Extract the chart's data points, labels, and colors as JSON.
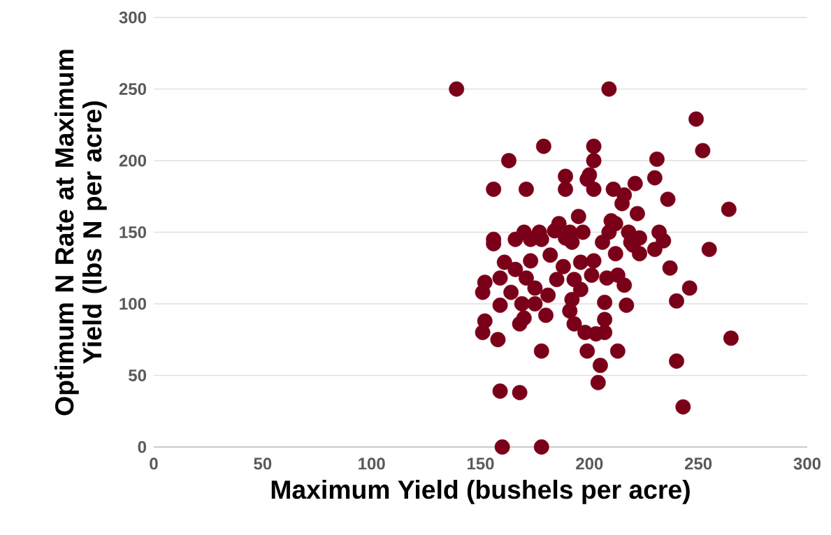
{
  "chart_data": {
    "type": "scatter",
    "xlabel": "Maximum Yield (bushels per acre)",
    "ylabel": "Optimum N Rate at Maximum Yield (lbs N per acre)",
    "color": "#7a0019",
    "grid": "y",
    "xlim": [
      0,
      300
    ],
    "ylim": [
      0,
      300
    ],
    "xticks": [
      0,
      50,
      100,
      150,
      200,
      250,
      300
    ],
    "yticks": [
      0,
      50,
      100,
      150,
      200,
      250,
      300
    ],
    "x": [
      139,
      209,
      249,
      252,
      264,
      265,
      255,
      236,
      231,
      230,
      237,
      246,
      240,
      240,
      243,
      179,
      163,
      156,
      171,
      189,
      189,
      202,
      202,
      200,
      199,
      202,
      211,
      221,
      216,
      215,
      222,
      212,
      210,
      195,
      186,
      184,
      156,
      156,
      166,
      170,
      173,
      177,
      178,
      191,
      197,
      192,
      189,
      206,
      209,
      218,
      219,
      223,
      220,
      223,
      212,
      232,
      234,
      230,
      182,
      173,
      161,
      166,
      188,
      196,
      202,
      171,
      159,
      152,
      151,
      164,
      159,
      152,
      151,
      158,
      170,
      168,
      169,
      175,
      175,
      181,
      180,
      185,
      193,
      196,
      192,
      191,
      193,
      198,
      203,
      207,
      207,
      207,
      201,
      208,
      213,
      216,
      217,
      178,
      199,
      213,
      205,
      204,
      159,
      168,
      160,
      178
    ],
    "values": [
      250,
      250,
      229,
      207,
      166,
      76,
      138,
      173,
      201,
      188,
      125,
      111,
      102,
      60,
      28,
      210,
      200,
      180,
      180,
      189,
      180,
      210,
      200,
      190,
      187,
      180,
      180,
      184,
      176,
      170,
      163,
      156,
      158,
      161,
      156,
      151,
      145,
      142,
      145,
      150,
      145,
      150,
      145,
      150,
      150,
      143,
      146,
      143,
      150,
      150,
      143,
      146,
      141,
      135,
      135,
      150,
      144,
      138,
      134,
      130,
      129,
      124,
      126,
      129,
      130,
      118,
      118,
      115,
      108,
      108,
      99,
      88,
      80,
      75,
      90,
      86,
      100,
      111,
      100,
      106,
      92,
      117,
      117,
      110,
      103,
      95,
      86,
      80,
      79,
      80,
      89,
      101,
      120,
      118,
      120,
      113,
      99,
      67,
      67,
      67,
      57,
      45,
      39,
      38,
      0,
      0
    ]
  }
}
